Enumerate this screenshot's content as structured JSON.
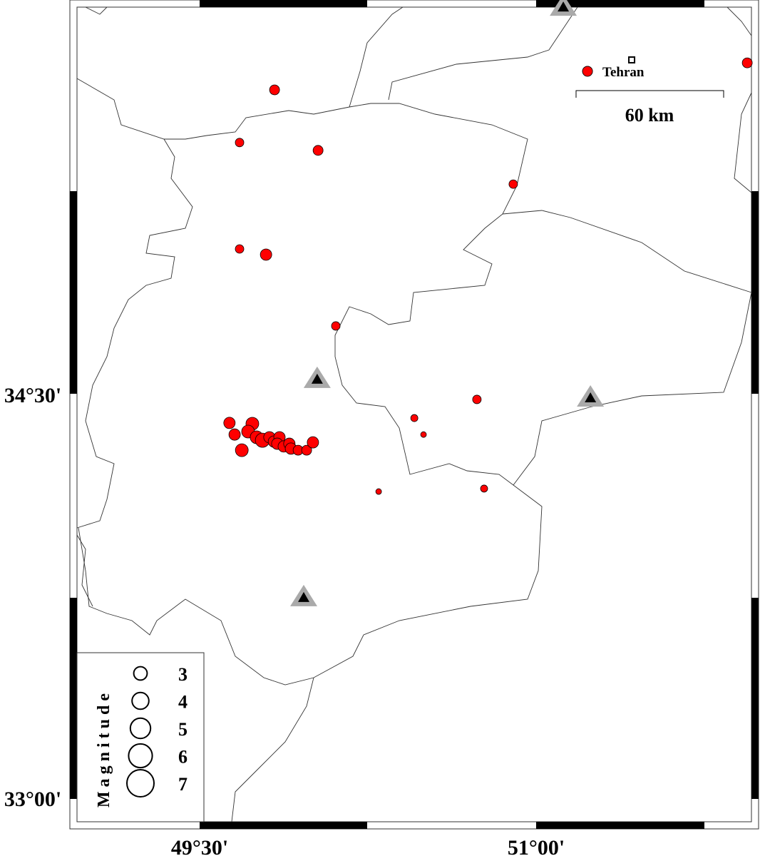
{
  "map": {
    "extent": {
      "lon_min": 48.953,
      "lon_max": 51.959,
      "lat_min": 32.921,
      "lat_max": 35.945
    },
    "axis_labels": {
      "lat_top": "34°30'",
      "lat_bottom": "33°00'",
      "lon_left": "49°30'",
      "lon_right": "51°00'"
    },
    "colors": {
      "event_fill": "#ff0000",
      "station_outer": "#aaaaaa",
      "station_inner": "#000000",
      "boundary": "#333333"
    },
    "city": {
      "name": "Tehran",
      "lon": 51.426,
      "lat": 35.736
    },
    "scale_bar": {
      "label": "60 km"
    },
    "legend": {
      "title": "Magnitude",
      "entries": [
        {
          "mag": 3,
          "label": "3"
        },
        {
          "mag": 4,
          "label": "4"
        },
        {
          "mag": 5,
          "label": "5"
        },
        {
          "mag": 6,
          "label": "6"
        },
        {
          "mag": 7,
          "label": "7"
        }
      ]
    },
    "stations": [
      {
        "lon": 50.024,
        "lat": 34.553
      },
      {
        "lon": 51.242,
        "lat": 34.484
      },
      {
        "lon": 49.964,
        "lat": 33.745
      },
      {
        "lon": 51.121,
        "lat": 35.931
      }
    ],
    "events": [
      {
        "lon": 49.834,
        "lat": 35.625,
        "mag": 2.5
      },
      {
        "lon": 49.678,
        "lat": 35.43,
        "mag": 2.25
      },
      {
        "lon": 50.028,
        "lat": 35.401,
        "mag": 2.5
      },
      {
        "lon": 50.898,
        "lat": 35.276,
        "mag": 2.25
      },
      {
        "lon": 49.678,
        "lat": 35.036,
        "mag": 2.25
      },
      {
        "lon": 49.796,
        "lat": 35.015,
        "mag": 2.75
      },
      {
        "lon": 50.107,
        "lat": 34.751,
        "mag": 2.25
      },
      {
        "lon": 50.736,
        "lat": 34.479,
        "mag": 2.25
      },
      {
        "lon": 50.457,
        "lat": 34.41,
        "mag": 2.0
      },
      {
        "lon": 50.498,
        "lat": 34.349,
        "mag": 1.75
      },
      {
        "lon": 50.298,
        "lat": 34.138,
        "mag": 1.75
      },
      {
        "lon": 50.768,
        "lat": 34.149,
        "mag": 2.0
      },
      {
        "lon": 51.941,
        "lat": 35.725,
        "mag": 2.5
      },
      {
        "lon": 51.229,
        "lat": 35.694,
        "mag": 2.5
      },
      {
        "lon": 49.633,
        "lat": 34.392,
        "mag": 2.75
      },
      {
        "lon": 49.656,
        "lat": 34.349,
        "mag": 2.75
      },
      {
        "lon": 49.688,
        "lat": 34.291,
        "mag": 3.0
      },
      {
        "lon": 49.735,
        "lat": 34.389,
        "mag": 3.0
      },
      {
        "lon": 49.716,
        "lat": 34.36,
        "mag": 3.0
      },
      {
        "lon": 49.754,
        "lat": 34.339,
        "mag": 3.0
      },
      {
        "lon": 49.78,
        "lat": 34.328,
        "mag": 3.25
      },
      {
        "lon": 49.811,
        "lat": 34.339,
        "mag": 2.75
      },
      {
        "lon": 49.831,
        "lat": 34.323,
        "mag": 2.75
      },
      {
        "lon": 49.856,
        "lat": 34.339,
        "mag": 2.75
      },
      {
        "lon": 49.846,
        "lat": 34.315,
        "mag": 2.75
      },
      {
        "lon": 49.875,
        "lat": 34.305,
        "mag": 2.75
      },
      {
        "lon": 49.9,
        "lat": 34.315,
        "mag": 2.75
      },
      {
        "lon": 49.907,
        "lat": 34.297,
        "mag": 2.75
      },
      {
        "lon": 49.939,
        "lat": 34.291,
        "mag": 2.5
      },
      {
        "lon": 49.977,
        "lat": 34.291,
        "mag": 2.5
      },
      {
        "lon": 50.005,
        "lat": 34.32,
        "mag": 2.75
      }
    ]
  }
}
